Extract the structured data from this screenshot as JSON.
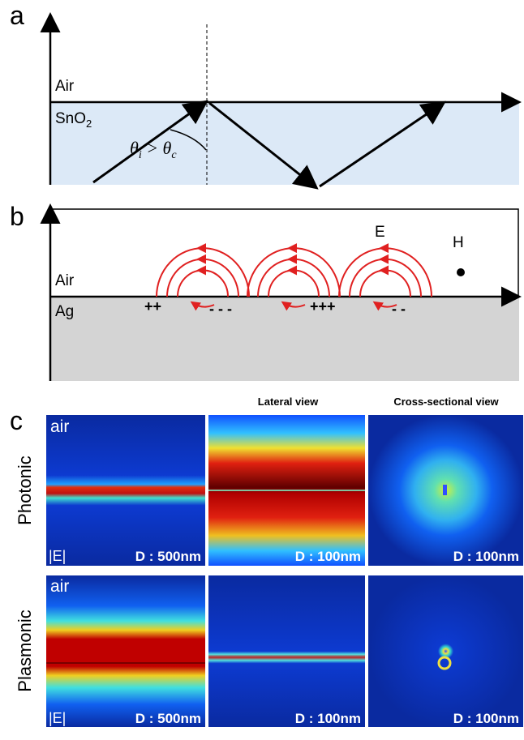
{
  "panels": {
    "a": {
      "label": "a",
      "upper": "Air",
      "lower": "SnO",
      "lower_sub": "2",
      "angle": [
        "θ",
        "i",
        " > θ",
        "c"
      ]
    },
    "b": {
      "label": "b",
      "upper": "Air",
      "lower": "Ag",
      "charges": [
        "++",
        "- - -",
        "+++",
        "- -"
      ],
      "e_field": "E",
      "h_field": "H"
    },
    "c": {
      "label": "c",
      "column_headers": [
        "Lateral view",
        "Cross-sectional view"
      ],
      "rows": [
        {
          "name": "Photonic",
          "medium": "air",
          "field": "|E|",
          "diameters": [
            "D : 500nm",
            "D : 100nm",
            "D : 100nm"
          ]
        },
        {
          "name": "Plasmonic",
          "medium": "air",
          "field": "|E|",
          "diameters": [
            "D : 500nm",
            "D : 100nm",
            "D : 100nm"
          ]
        }
      ]
    }
  }
}
